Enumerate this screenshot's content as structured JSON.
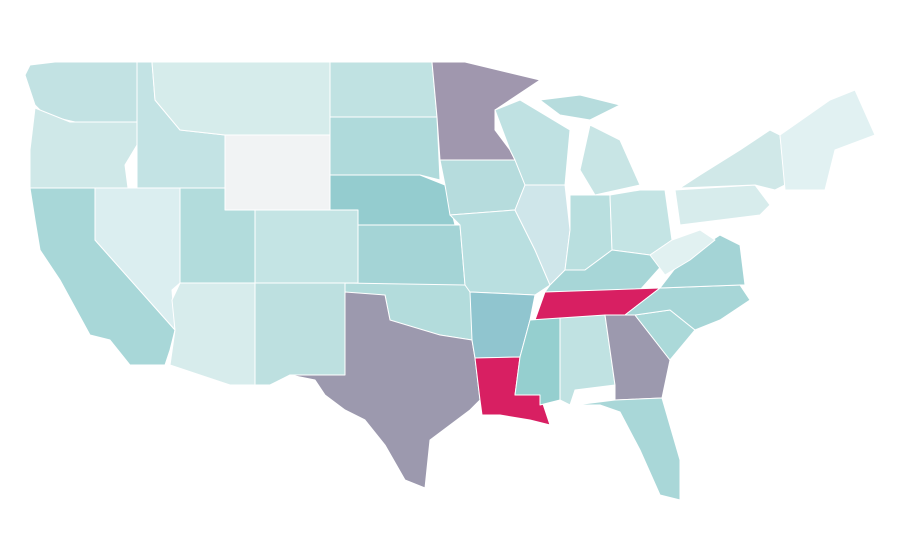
{
  "colors": [
    "#c2e2e3",
    "#cfe8e8",
    "#c3e3e4",
    "#d6eceb",
    "#a8d7d8",
    "#dbeef0",
    "#f1f3f4",
    "#b2dcdc",
    "#c4e4e4",
    "#d7ecec",
    "#bde0e0",
    "#c0e2e2",
    "#afdadb",
    "#94cccf",
    "#a4d4d6",
    "#b3dcdc",
    "#9c99ae",
    "#a097ae",
    "#b6dcdd",
    "#b9dfe0",
    "#90c5cf",
    "#d81f62",
    "#bfe1e2",
    "#cfe6ea",
    "#c8e5e5",
    "#b9dfdf",
    "#c4e4e4",
    "#a7d6d7",
    "#d81f62",
    "#95cfcf",
    "#c0e2e2",
    "#9c99ae",
    "#abd9d9",
    "#a7d6d7",
    "#a4d4d6",
    "#a9d7d8",
    "#e1f1f1",
    "#d7ecec",
    "#d0e8e8",
    "#e1f1f2",
    "#b6dcdd"
  ]
}
